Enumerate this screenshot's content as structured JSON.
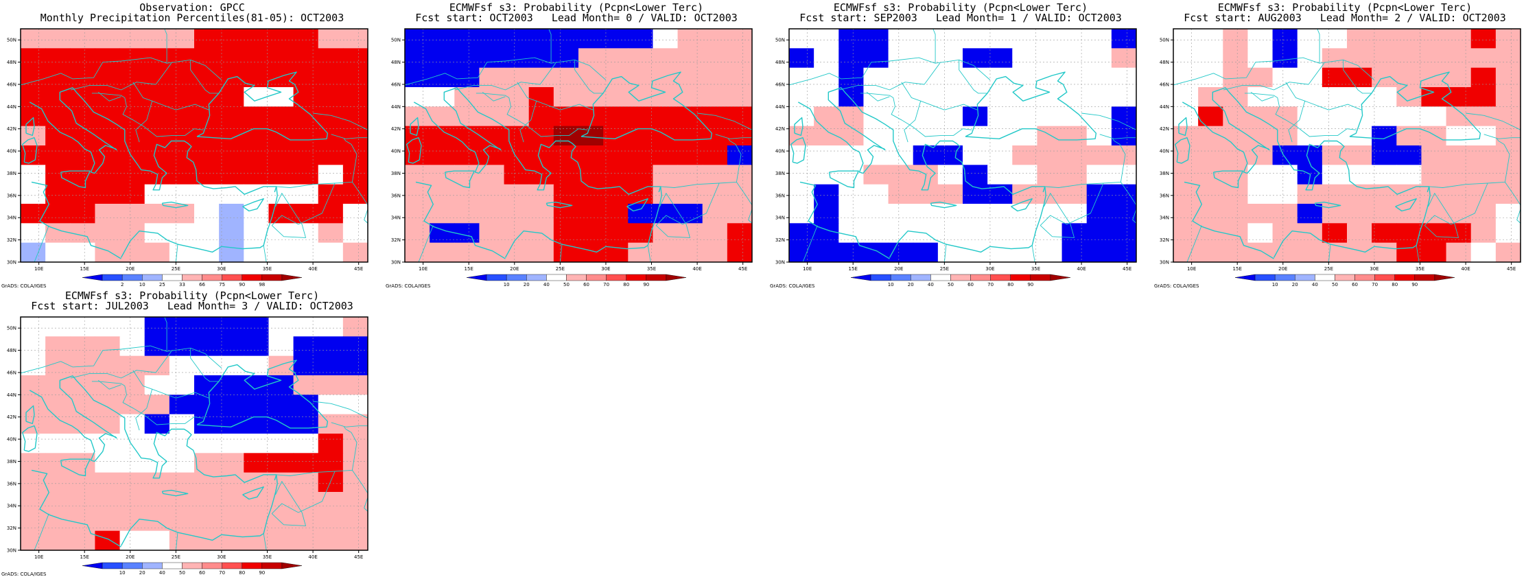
{
  "credit": "GrADS: COLA/IGES",
  "colors": {
    "coast": "#22c8c8",
    "frame": "#000000",
    "grid": "#9a9a9a",
    "legend_shades": [
      "#0000f0",
      "#2850ff",
      "#5a82ff",
      "#a0b4ff",
      "#ffffff",
      "#ffb4b4",
      "#ff8c8c",
      "#ff5050",
      "#f00000",
      "#c80000",
      "#a00000"
    ]
  },
  "axes": {
    "lon_labels": [
      "10E",
      "15E",
      "20E",
      "25E",
      "30E",
      "35E",
      "40E",
      "45E"
    ],
    "lat_labels": [
      "30N",
      "32N",
      "34N",
      "36N",
      "38N",
      "40N",
      "42N",
      "44N",
      "46N",
      "48N",
      "50N"
    ],
    "lon_range": [
      8,
      46
    ],
    "lat_range": [
      30,
      51
    ]
  },
  "panels": [
    {
      "title1": "Observation: GPCC",
      "title2": "Monthly Precipitation Percentiles(81-05): OCT2003",
      "legend_labels": [
        "2",
        "10",
        "25",
        "33",
        "66",
        "75",
        "90",
        "98"
      ],
      "grid_categories": [
        "LLLLLLLHHHHHLL",
        "HHHHHHHHHHHHHH",
        "HHHHHHHHHHHHHH",
        "HHHHHHHHHWWHHH",
        "HHHHHHHHHHHHHH",
        "LHHHHHHHHHHHHH",
        "HHHHHHHHHHHHHH",
        "WHHHHHHHHHHHWH",
        "WHHHHWWWWWWWHH",
        "HHHLLLLWVWHHHW",
        "WLLLLWWWVWWWLW",
        "VWWLLLWWVWWWWL"
      ]
    },
    {
      "title1": "ECMWFsf s3: Probability (Pcpn<Lower Terc)",
      "title2": "Fcst start: OCT2003   Lead Month= 0 / VALID: OCT2003",
      "legend_labels": [
        "10",
        "20",
        "40",
        "50",
        "60",
        "70",
        "80",
        "90"
      ],
      "grid_categories": [
        "BBBBBBBBBBWLLL",
        "BBBBBBBLLLLLLL",
        "BBBLLLLLLLLLLL",
        "WWLLLHLLLLLLLL",
        "LLLLLHHHHHHHHH",
        "HHHHHHDDHHHHHH",
        "HHHHHHHHHHHHHB",
        "LLLLHHHHHHLLLL",
        "LLLLLLHHHHLLLL",
        "LLLLLLHHHBBBLL",
        "LBBLLLHHHHLLLH",
        "LLLLLLHHHLLLLH"
      ]
    },
    {
      "title1": "ECMWFsf s3: Probability (Pcpn<Lower Terc)",
      "title2": "Fcst start: SEP2003   Lead Month= 1 / VALID: OCT2003",
      "legend_labels": [
        "10",
        "20",
        "40",
        "50",
        "60",
        "70",
        "80",
        "90"
      ],
      "grid_categories": [
        "WWBBWWWWWWWWWB",
        "BWBBWWWBBWWWWL",
        "WWBWWWWWWWWWWW",
        "WWBWWWWWWWWWWW",
        "WLLWWWWBWWWWWB",
        "LLLWWWWWWWLLWB",
        "WWWWWBBWWLLLLL",
        "WWWLLLWBWWLLWW",
        "WBWWLLLBBLLLBB",
        "WBWWWWWWWWWWBB",
        "BBWWWWWWWWWBBB",
        "BBBBBBWWWWWBBB"
      ]
    },
    {
      "title1": "ECMWFsf s3: Probability (Pcpn<Lower Terc)",
      "title2": "Fcst start: AUG2003   Lead Month= 2 / VALID: OCT2003",
      "legend_labels": [
        "10",
        "20",
        "40",
        "50",
        "60",
        "70",
        "80",
        "90"
      ],
      "grid_categories": [
        "WWLWBWWLLLLLHL",
        "WWLWBWLLLLLLLL",
        "WWLLWWHHLLLLHL",
        "WLLWWWWWWLHHHL",
        "WHLLLWWWWWWLLL",
        "LLLLLWWWBLLWWL",
        "LLLLBBLLBBLLLL",
        "LLLWWBWWWWLLLL",
        "LLLWWLLLLLLLLL",
        "LLLLLBLLLLLLLW",
        "LLLWLLHLHHHHLW",
        "LLLLLLLLLHHLWL"
      ]
    },
    {
      "title1": "ECMWFsf s3: Probability (Pcpn<Lower Terc)",
      "title2": "Fcst start: JUL2003   Lead Month= 3 / VALID: OCT2003",
      "legend_labels": [
        "10",
        "20",
        "40",
        "50",
        "60",
        "70",
        "80",
        "90"
      ],
      "grid_categories": [
        "WWWWWBBBBBWWWL",
        "WLLLWBBBBBWBBB",
        "WLLLLLWWWWLBBB",
        "LLLLLWWBBBBLLL",
        "LLLLLLBBBBBBWW",
        "LLLLWBWBBBBBLL",
        "WWWWWWWWWWWWHL",
        "LLLWWWWLLHHHHL",
        "LLLLLLLLLLLLHL",
        "LLLLLLLLLLLLLL",
        "LLLLLLLLLLLLLL",
        "LLLHWWLLLLLLLL"
      ]
    }
  ]
}
